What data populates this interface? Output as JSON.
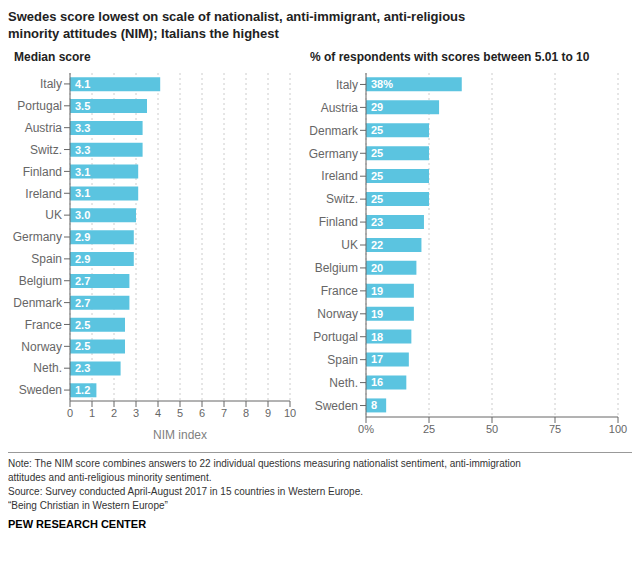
{
  "title": "Swedes score lowest on scale of nationalist, anti-immigrant, anti-religious\nminority attitudes (NIM); Italians the highest",
  "annotations": [
    "Note: The NIM score combines answers to 22 individual questions measuring nationalist sentiment, anti-immigration",
    "attitudes and anti-religious minority sentiment.",
    "Source: Survey conducted April-August 2017 in 15 countries in Western Europe.",
    "“Being Christian in Western Europe”",
    "PEW RESEARCH CENTER"
  ],
  "chart_data": [
    {
      "type": "bar",
      "orientation": "horizontal",
      "title": "Median score",
      "x_label": "NIM index",
      "categories": [
        "Italy",
        "Portugal",
        "Austria",
        "Switz.",
        "Finland",
        "Ireland",
        "UK",
        "Germany",
        "Spain",
        "Belgium",
        "Denmark",
        "France",
        "Norway",
        "Neth.",
        "Sweden"
      ],
      "values": [
        4.1,
        3.5,
        3.3,
        3.3,
        3.1,
        3.1,
        3.0,
        2.9,
        2.9,
        2.7,
        2.7,
        2.5,
        2.5,
        2.3,
        1.2
      ],
      "value_labels": [
        "4.1",
        "3.5",
        "3.3",
        "3.3",
        "3.1",
        "3.1",
        "3.0",
        "2.9",
        "2.9",
        "2.7",
        "2.7",
        "2.5",
        "2.5",
        "2.3",
        "1.2"
      ],
      "color": "#5bc4e0",
      "xlim": [
        0,
        10
      ],
      "xticks": [
        0,
        1,
        2,
        3,
        4,
        5,
        6,
        7,
        8,
        9,
        10
      ],
      "grid": true,
      "data_labels": true
    },
    {
      "type": "bar",
      "orientation": "horizontal",
      "title": "% of respondents with scores between 5.01 to 10",
      "categories": [
        "Italy",
        "Austria",
        "Denmark",
        "Germany",
        "Ireland",
        "Switz.",
        "Finland",
        "UK",
        "Belgium",
        "France",
        "Norway",
        "Portugal",
        "Spain",
        "Neth.",
        "Sweden"
      ],
      "values": [
        38,
        29,
        25,
        25,
        25,
        25,
        23,
        22,
        20,
        19,
        19,
        18,
        17,
        16,
        8
      ],
      "value_labels": [
        "38%",
        "29",
        "25",
        "25",
        "25",
        "25",
        "23",
        "22",
        "20",
        "19",
        "19",
        "18",
        "17",
        "16",
        "8"
      ],
      "color": "#5bc4e0",
      "xlim": [
        0,
        100
      ],
      "xticks": [
        {
          "value": 0,
          "label": "0%"
        },
        25,
        50,
        75,
        {
          "value": 100,
          "label": "100"
        }
      ],
      "grid": true,
      "data_labels": true
    }
  ]
}
